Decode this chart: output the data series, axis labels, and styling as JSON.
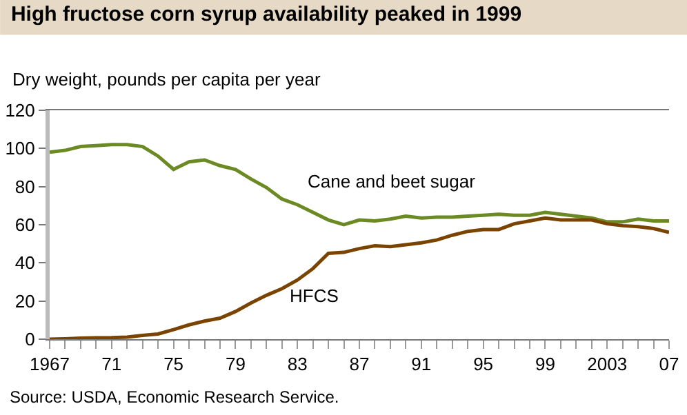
{
  "chart_data": {
    "type": "line",
    "title": "High fructose corn syrup availability peaked in 1999",
    "ylabel": "Dry weight, pounds per capita per year",
    "annotations": [
      "Source: USDA, Economic Research Service."
    ],
    "x": [
      1967,
      1968,
      1969,
      1970,
      1971,
      1972,
      1973,
      1974,
      1975,
      1976,
      1977,
      1978,
      1979,
      1980,
      1981,
      1982,
      1983,
      1984,
      1985,
      1986,
      1987,
      1988,
      1989,
      1990,
      1991,
      1992,
      1993,
      1994,
      1995,
      1996,
      1997,
      1998,
      1999,
      2000,
      2001,
      2002,
      2003,
      2004,
      2005,
      2006,
      2007
    ],
    "series": [
      {
        "name": "Cane and beet sugar",
        "color": "#6b8a23",
        "values": [
          98,
          99,
          101,
          101.5,
          102,
          102,
          101,
          96,
          89,
          93,
          94,
          91,
          89,
          84,
          79.5,
          73.5,
          70.5,
          66.5,
          62.5,
          60,
          62.5,
          62,
          63,
          64.5,
          63.5,
          64,
          64,
          64.5,
          65,
          65.5,
          65,
          65,
          66.5,
          65.5,
          64.5,
          63.5,
          61.5,
          61.5,
          63,
          62,
          62
        ]
      },
      {
        "name": "HFCS",
        "color": "#7a4300",
        "values": [
          0,
          0.2,
          0.5,
          0.7,
          0.8,
          1.1,
          2,
          2.7,
          5,
          7.5,
          9.5,
          11,
          14.5,
          19,
          23,
          26.5,
          31,
          37,
          45,
          45.5,
          47.5,
          49,
          48.5,
          49.5,
          50.5,
          52,
          54.5,
          56.5,
          57.5,
          57.5,
          60.5,
          62,
          63.5,
          62.5,
          62.5,
          62.5,
          60.5,
          59.5,
          59,
          58,
          56
        ]
      }
    ],
    "xlim": [
      1967,
      2007
    ],
    "xticks": [
      1967,
      {
        "value": 1968,
        "label": null
      },
      {
        "value": 1969,
        "label": null
      },
      {
        "value": 1970,
        "label": null
      },
      {
        "value": 1971,
        "label": "71"
      },
      {
        "value": 1972,
        "label": null
      },
      {
        "value": 1973,
        "label": null
      },
      {
        "value": 1974,
        "label": null
      },
      {
        "value": 1975,
        "label": "75"
      },
      {
        "value": 1976,
        "label": null
      },
      {
        "value": 1977,
        "label": null
      },
      {
        "value": 1978,
        "label": null
      },
      {
        "value": 1979,
        "label": "79"
      },
      {
        "value": 1980,
        "label": null
      },
      {
        "value": 1981,
        "label": null
      },
      {
        "value": 1982,
        "label": null
      },
      {
        "value": 1983,
        "label": "83"
      },
      {
        "value": 1984,
        "label": null
      },
      {
        "value": 1985,
        "label": null
      },
      {
        "value": 1986,
        "label": null
      },
      {
        "value": 1987,
        "label": "87"
      },
      {
        "value": 1988,
        "label": null
      },
      {
        "value": 1989,
        "label": null
      },
      {
        "value": 1990,
        "label": null
      },
      {
        "value": 1991,
        "label": "91"
      },
      {
        "value": 1992,
        "label": null
      },
      {
        "value": 1993,
        "label": null
      },
      {
        "value": 1994,
        "label": null
      },
      {
        "value": 1995,
        "label": "95"
      },
      {
        "value": 1996,
        "label": null
      },
      {
        "value": 1997,
        "label": null
      },
      {
        "value": 1998,
        "label": null
      },
      {
        "value": 1999,
        "label": "99"
      },
      {
        "value": 2000,
        "label": null
      },
      {
        "value": 2001,
        "label": null
      },
      {
        "value": 2002,
        "label": null
      },
      {
        "value": 2003,
        "label": "2003"
      },
      {
        "value": 2004,
        "label": null
      },
      {
        "value": 2005,
        "label": null
      },
      {
        "value": 2006,
        "label": null
      },
      {
        "value": 2007,
        "label": "07"
      }
    ],
    "ylim": [
      0,
      120
    ],
    "yticks": [
      0,
      20,
      40,
      60,
      80,
      100,
      120
    ],
    "grid": false,
    "legend": false,
    "marker": "none",
    "line_style": "solid"
  }
}
